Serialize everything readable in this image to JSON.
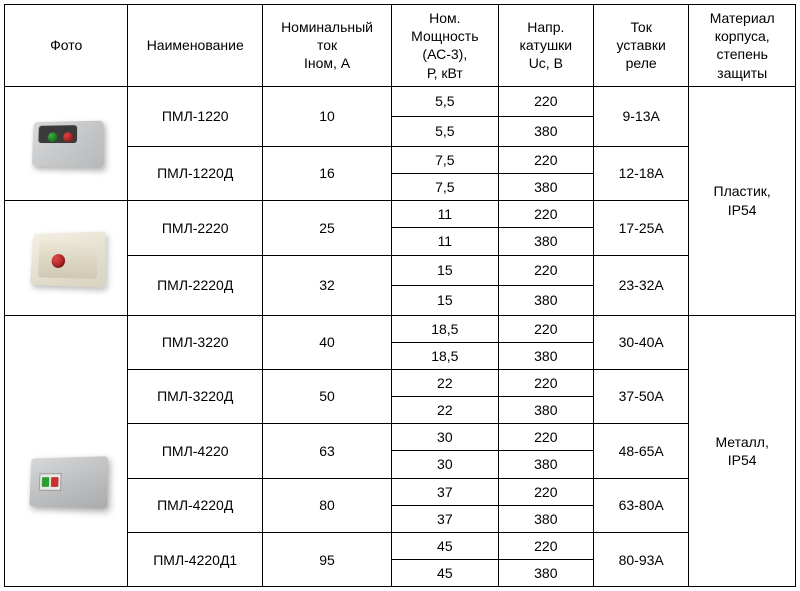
{
  "headers": {
    "photo": "Фото",
    "name": "Наименование",
    "nom_current": "Номинальный\nток\nIном, А",
    "power": "Ном.\nМощность\n(АС-3),\nР, кВт",
    "coil": "Напр.\nкатушки\nUc, В",
    "relay": "Ток\nуставки\nреле",
    "case": "Материал\nкорпуса,\nстепень\nзащиты"
  },
  "group1": {
    "case": "Пластик,\nIP54",
    "models": [
      {
        "name": "ПМЛ-1220",
        "current": "10",
        "relay": "9-13А",
        "rows": [
          {
            "p": "5,5",
            "v": "220"
          },
          {
            "p": "5,5",
            "v": "380"
          }
        ]
      },
      {
        "name": "ПМЛ-1220Д",
        "current": "16",
        "relay": "12-18А",
        "rows": [
          {
            "p": "7,5",
            "v": "220"
          },
          {
            "p": "7,5",
            "v": "380"
          }
        ]
      },
      {
        "name": "ПМЛ-2220",
        "current": "25",
        "relay": "17-25А",
        "rows": [
          {
            "p": "11",
            "v": "220"
          },
          {
            "p": "11",
            "v": "380"
          }
        ]
      },
      {
        "name": "ПМЛ-2220Д",
        "current": "32",
        "relay": "23-32А",
        "rows": [
          {
            "p": "15",
            "v": "220"
          },
          {
            "p": "15",
            "v": "380"
          }
        ]
      }
    ]
  },
  "group2": {
    "case": "Металл,\nIP54",
    "models": [
      {
        "name": "ПМЛ-3220",
        "current": "40",
        "relay": "30-40А",
        "rows": [
          {
            "p": "18,5",
            "v": "220"
          },
          {
            "p": "18,5",
            "v": "380"
          }
        ]
      },
      {
        "name": "ПМЛ-3220Д",
        "current": "50",
        "relay": "37-50А",
        "rows": [
          {
            "p": "22",
            "v": "220"
          },
          {
            "p": "22",
            "v": "380"
          }
        ]
      },
      {
        "name": "ПМЛ-4220",
        "current": "63",
        "relay": "48-65А",
        "rows": [
          {
            "p": "30",
            "v": "220"
          },
          {
            "p": "30",
            "v": "380"
          }
        ]
      },
      {
        "name": "ПМЛ-4220Д",
        "current": "80",
        "relay": "63-80А",
        "rows": [
          {
            "p": "37",
            "v": "220"
          },
          {
            "p": "37",
            "v": "380"
          }
        ]
      },
      {
        "name": "ПМЛ-4220Д1",
        "current": "95",
        "relay": "80-93А",
        "rows": [
          {
            "p": "45",
            "v": "220"
          },
          {
            "p": "45",
            "v": "380"
          }
        ]
      }
    ]
  }
}
